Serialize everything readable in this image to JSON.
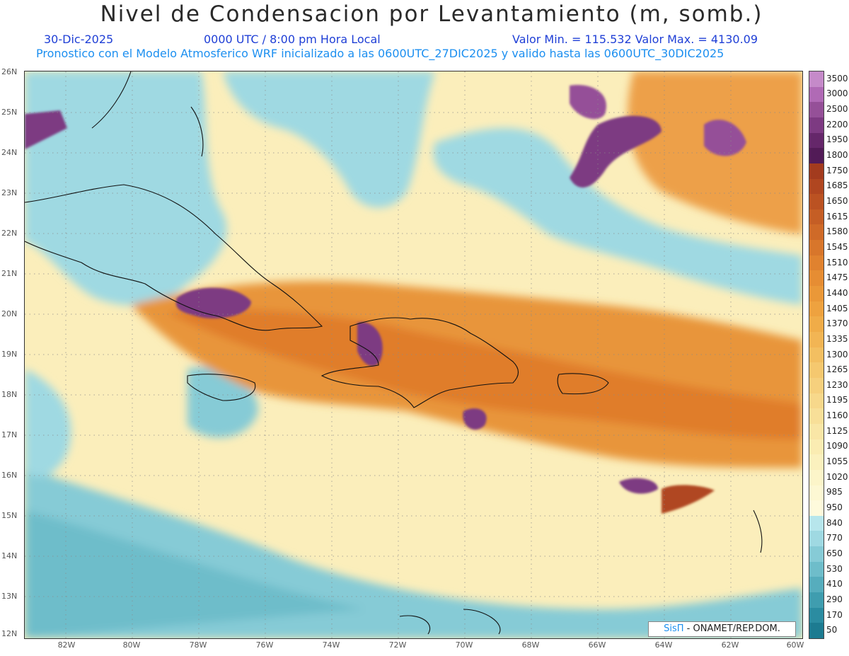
{
  "header": {
    "title": "Nivel de Condensacion por Levantamiento (m, somb.)",
    "date": "30-Dic-2025",
    "time": "0000 UTC / 8:00 pm Hora Local",
    "minmax": "Valor Min. = 115.532   Valor Max. = 4130.09",
    "model_line": "Pronostico con el Modelo Atmosferico WRF inicializado a las 0600UTC_27DIC2025 y valido hasta las  0600UTC_30DIC2025"
  },
  "axes": {
    "lat_labels": [
      "26N",
      "25N",
      "24N",
      "23N",
      "22N",
      "21N",
      "20N",
      "19N",
      "18N",
      "17N",
      "16N",
      "15N",
      "14N",
      "13N",
      "12N"
    ],
    "lon_labels": [
      "82W",
      "80W",
      "78W",
      "76W",
      "74W",
      "72W",
      "70W",
      "68W",
      "66W",
      "64W",
      "62W",
      "60W"
    ]
  },
  "colorbar": {
    "labels": [
      "3500",
      "3000",
      "2500",
      "2200",
      "1950",
      "1800",
      "1750",
      "1685",
      "1650",
      "1615",
      "1580",
      "1545",
      "1510",
      "1475",
      "1440",
      "1405",
      "1370",
      "1335",
      "1300",
      "1265",
      "1230",
      "1195",
      "1160",
      "1125",
      "1090",
      "1055",
      "1020",
      "985",
      "950",
      "840",
      "770",
      "650",
      "530",
      "410",
      "290",
      "170",
      "50"
    ],
    "colors": [
      "#c58ac9",
      "#b06ab5",
      "#955098",
      "#7d3a82",
      "#65276a",
      "#521b57",
      "#a33b1e",
      "#b04620",
      "#bb5222",
      "#c55e25",
      "#cf6a28",
      "#d8762b",
      "#e0822f",
      "#e68d33",
      "#ea9838",
      "#eea23f",
      "#f0ac48",
      "#f2b554",
      "#f3bf61",
      "#f5c86f",
      "#f6d07d",
      "#f7d88b",
      "#f8df98",
      "#f9e6a6",
      "#faecb2",
      "#fbf1be",
      "#fcf5c9",
      "#fdf8d3",
      "#fefadc",
      "#b7e6ec",
      "#9fd9e2",
      "#86cbd6",
      "#6ebdca",
      "#56adbd",
      "#3f9daf",
      "#2b8ca1",
      "#1d7b91"
    ]
  },
  "credit": {
    "logo": "SisΠ",
    "text": "- ONAMET/REP.DOM."
  },
  "colors": {
    "ocean_light": "#9fd9e2",
    "orange": "#e8953a",
    "purple": "#7d3a82"
  }
}
